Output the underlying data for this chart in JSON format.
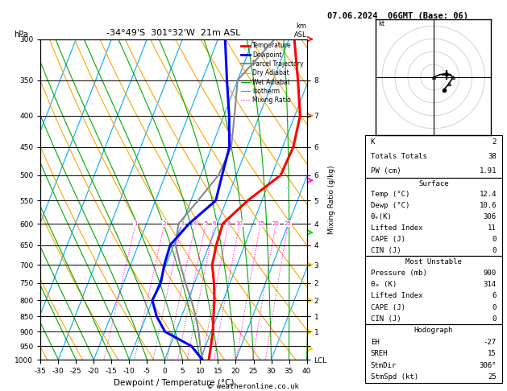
{
  "title_left": "-34°49'S  301°32'W  21m ASL",
  "title_right": "07.06.2024  06GMT (Base: 06)",
  "xlabel": "Dewpoint / Temperature (°C)",
  "copyright": "© weatheronline.co.uk",
  "pressure_levels": [
    300,
    350,
    400,
    450,
    500,
    550,
    600,
    650,
    700,
    750,
    800,
    850,
    900,
    950,
    1000
  ],
  "temp_color": "#ff0000",
  "dewp_color": "#0000ff",
  "parcel_color": "#888888",
  "dry_adiabat_color": "#ffa500",
  "wet_adiabat_color": "#00aa00",
  "isotherm_color": "#00aaff",
  "mixing_ratio_color": "#ff00cc",
  "temp_data": [
    [
      1000,
      12.4
    ],
    [
      950,
      11.5
    ],
    [
      900,
      10.5
    ],
    [
      850,
      9.0
    ],
    [
      800,
      7.5
    ],
    [
      750,
      5.5
    ],
    [
      700,
      3.0
    ],
    [
      650,
      2.0
    ],
    [
      600,
      1.5
    ],
    [
      550,
      6.0
    ],
    [
      500,
      12.5
    ],
    [
      450,
      13.0
    ],
    [
      400,
      11.5
    ],
    [
      350,
      7.0
    ],
    [
      300,
      1.5
    ]
  ],
  "dewp_data": [
    [
      1000,
      10.6
    ],
    [
      950,
      6.0
    ],
    [
      900,
      -3.0
    ],
    [
      850,
      -7.0
    ],
    [
      800,
      -10.0
    ],
    [
      750,
      -9.5
    ],
    [
      700,
      -10.5
    ],
    [
      650,
      -11.0
    ],
    [
      600,
      -8.0
    ],
    [
      550,
      -3.0
    ],
    [
      500,
      -4.0
    ],
    [
      450,
      -5.0
    ],
    [
      400,
      -8.5
    ],
    [
      350,
      -13.0
    ],
    [
      300,
      -18.0
    ]
  ],
  "parcel_data": [
    [
      1000,
      10.6
    ],
    [
      950,
      8.5
    ],
    [
      900,
      6.5
    ],
    [
      850,
      4.0
    ],
    [
      800,
      1.0
    ],
    [
      750,
      -2.5
    ],
    [
      700,
      -6.0
    ],
    [
      650,
      -9.5
    ],
    [
      600,
      -11.0
    ],
    [
      550,
      -8.0
    ],
    [
      500,
      -5.0
    ],
    [
      450,
      -4.5
    ],
    [
      400,
      -7.0
    ],
    [
      350,
      -10.0
    ],
    [
      300,
      -4.0
    ]
  ],
  "xmin": -35,
  "xmax": 40,
  "pmin": 300,
  "pmax": 1000,
  "right_km_labels": {
    "350": "8",
    "400": "7",
    "450": "6",
    "500": "6",
    "550": "5",
    "600": "4",
    "650": "4",
    "700": "3",
    "750": "2",
    "800": "2",
    "850": "1",
    "900": "1",
    "950": "",
    "1000": "LCL"
  },
  "mixing_ratio_values": [
    1,
    2,
    3,
    4,
    5,
    6,
    8,
    10,
    15,
    20,
    25
  ],
  "k_index": 2,
  "totals_totals": 38,
  "pw_cm": "1.91",
  "surf_temp": "12.4",
  "surf_dewp": "10.6",
  "surf_thetae": "306",
  "surf_li": "11",
  "surf_cape": "0",
  "surf_cin": "0",
  "mu_pressure": "900",
  "mu_thetae": "314",
  "mu_li": "6",
  "mu_cape": "0",
  "mu_cin": "0",
  "hodo_eh": "-27",
  "hodo_sreh": "15",
  "hodo_stmdir": "306°",
  "hodo_stmspd": "25",
  "wind_barb_levels": [
    300,
    400,
    510,
    620,
    700,
    800,
    900,
    960
  ],
  "wind_barb_colors": [
    "#ff0000",
    "#ff6600",
    "#ff00cc",
    "#00cc00",
    "#ffcc00",
    "#ffcc00",
    "#ffcc00",
    "#ffcc00"
  ],
  "skew_factor": 35
}
